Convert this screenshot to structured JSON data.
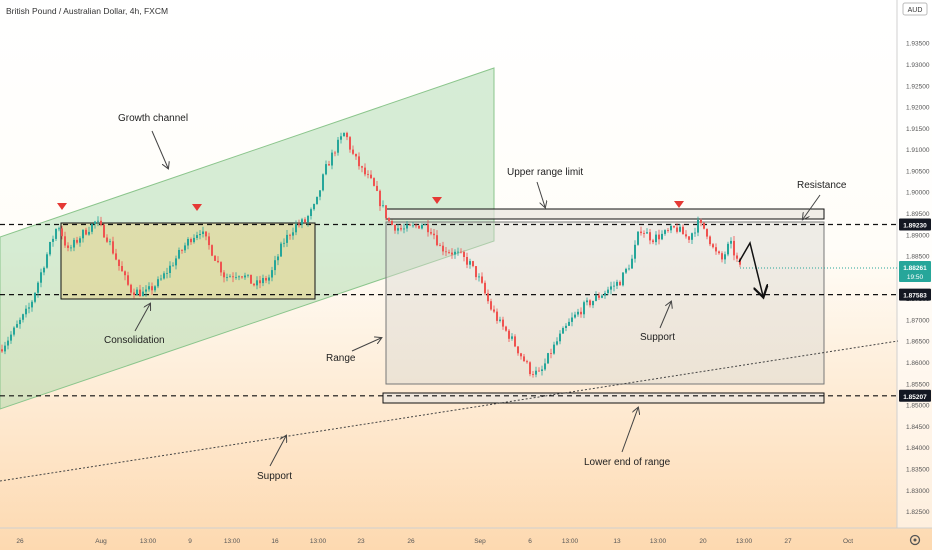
{
  "header": {
    "symbol_title": "British Pound / Australian Dollar, 4h, FXCM"
  },
  "currency_badge": "AUD",
  "chart_data": {
    "type": "candlestick",
    "title": "British Pound / Australian Dollar, 4h, FXCM",
    "y_axis": {
      "range": [
        1.8236,
        1.9475
      ],
      "ticks": [
        "1.93500",
        "1.93000",
        "1.92500",
        "1.92000",
        "1.91500",
        "1.91000",
        "1.90500",
        "1.90000",
        "1.89500",
        "1.89000",
        "1.88500",
        "1.88000",
        "1.87500",
        "1.87000",
        "1.86500",
        "1.86000",
        "1.85500",
        "1.85000",
        "1.84500",
        "1.84000",
        "1.83500",
        "1.83000",
        "1.82500"
      ]
    },
    "x_axis": {
      "ticks": [
        "26",
        "Aug",
        "13:00",
        "9",
        "13:00",
        "16",
        "13:00",
        "23",
        "26",
        "Sep",
        "6",
        "13:00",
        "13",
        "13:00",
        "20",
        "13:00",
        "27",
        "Oct"
      ]
    },
    "price_badges": [
      {
        "value": "1.89230",
        "kind": "level"
      },
      {
        "value": "1.87583",
        "kind": "level"
      },
      {
        "value": "1.85207",
        "kind": "level"
      }
    ],
    "current_price": {
      "value": "1.88261",
      "countdown": "19:50",
      "color": "#26a69a"
    },
    "horizontal_levels": [
      {
        "price": 1.8923,
        "style": "dashed"
      },
      {
        "price": 1.87583,
        "style": "dashed"
      },
      {
        "price": 1.85207,
        "style": "dashed"
      }
    ],
    "annotations": [
      "Growth channel",
      "Consolidation",
      "Range",
      "Upper range limit",
      "Resistance",
      "Support",
      "Support",
      "Lower end of range"
    ],
    "colors": {
      "up": "#26a69a",
      "down": "#ef5350",
      "channel": "#a5d6a7",
      "consolidation": "#e6d28a",
      "range": "#d9d6d0",
      "arrow": "#e53935"
    }
  }
}
